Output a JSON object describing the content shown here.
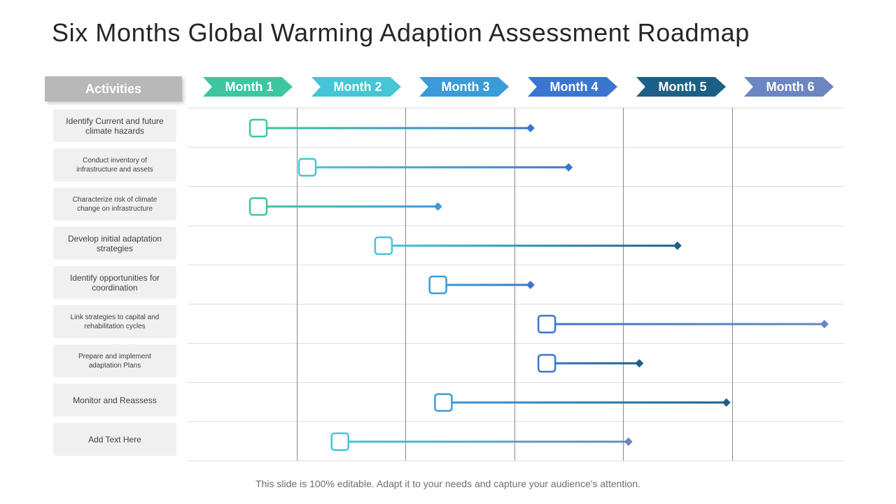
{
  "title": "Six Months Global Warming Adaption Assessment Roadmap",
  "activities_header": "Activities",
  "months": [
    {
      "label": "Month 1",
      "color": "#3ec6a0"
    },
    {
      "label": "Month 2",
      "color": "#44c6d6"
    },
    {
      "label": "Month 3",
      "color": "#3a9bd8"
    },
    {
      "label": "Month 4",
      "color": "#3a76d0"
    },
    {
      "label": "Month 5",
      "color": "#1d5f86"
    },
    {
      "label": "Month 6",
      "color": "#6b86c0"
    }
  ],
  "activities": [
    "Identify Current and future climate hazards",
    "Conduct inventory of infrastructure and assets",
    "Characterize risk of climate change on infrastructure",
    "Develop initial adaptation strategies",
    "Identify opportunities for coordination",
    "Link strategies to capital and rehabilitation cycles",
    "Prepare and implement adaptation Plans",
    "Monitor and Reassess",
    "Add Text Here"
  ],
  "chart_data": {
    "type": "gantt",
    "x_unit": "month",
    "x_range": [
      0,
      6
    ],
    "tasks": [
      {
        "name": "Identify Current and future climate hazards",
        "start": 0.65,
        "end": 3.15,
        "start_color": "#3ec6a0",
        "end_color": "#3a76d0"
      },
      {
        "name": "Conduct inventory of infrastructure and assets",
        "start": 1.1,
        "end": 3.5,
        "start_color": "#44c6d6",
        "end_color": "#3a76d0"
      },
      {
        "name": "Characterize risk of climate change on infrastructure",
        "start": 0.65,
        "end": 2.3,
        "start_color": "#3ec6a0",
        "end_color": "#3a9bd8"
      },
      {
        "name": "Develop initial adaptation strategies",
        "start": 1.8,
        "end": 4.5,
        "start_color": "#44c6d6",
        "end_color": "#1d5f86"
      },
      {
        "name": "Identify opportunities for coordination",
        "start": 2.3,
        "end": 3.15,
        "start_color": "#3a9bd8",
        "end_color": "#3a76d0"
      },
      {
        "name": "Link strategies to capital and rehabilitation cycles",
        "start": 3.3,
        "end": 5.85,
        "start_color": "#3a76d0",
        "end_color": "#6b86c0"
      },
      {
        "name": "Prepare and implement adaptation Plans",
        "start": 3.3,
        "end": 4.15,
        "start_color": "#3a76d0",
        "end_color": "#1d5f86"
      },
      {
        "name": "Monitor and Reassess",
        "start": 2.35,
        "end": 4.95,
        "start_color": "#3a9bd8",
        "end_color": "#1d5f86"
      },
      {
        "name": "Add Text Here",
        "start": 1.4,
        "end": 4.05,
        "start_color": "#44c6d6",
        "end_color": "#6b86c0"
      }
    ]
  },
  "footer": "This slide is 100% editable. Adapt it to your needs and capture your audience's attention."
}
